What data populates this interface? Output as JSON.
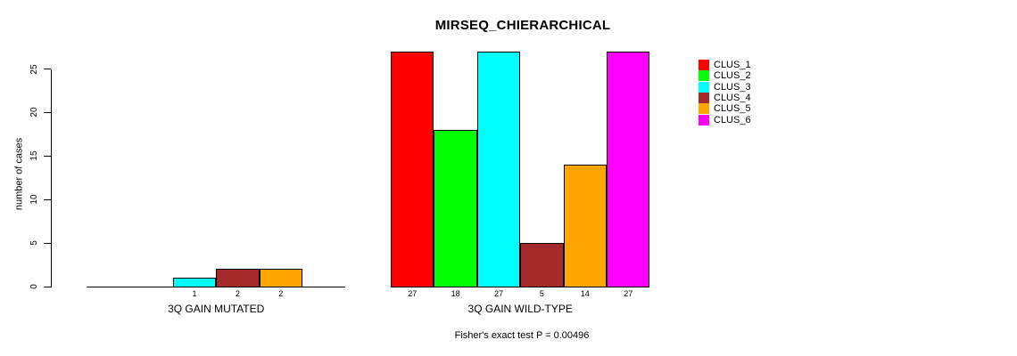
{
  "title": "MIRSEQ_CHIERARCHICAL",
  "footnote": "Fisher's exact test P = 0.00496",
  "chart_data": {
    "type": "bar",
    "title": "MIRSEQ_CHIERARCHICAL",
    "ylabel": "number of cases",
    "ylim": [
      0,
      27
    ],
    "yticks": [
      0,
      5,
      10,
      15,
      20,
      25
    ],
    "grid": false,
    "legend_position": "right",
    "legend": [
      {
        "name": "CLUS_1",
        "color": "#FF0000"
      },
      {
        "name": "CLUS_2",
        "color": "#00FF00"
      },
      {
        "name": "CLUS_3",
        "color": "#00FFFF"
      },
      {
        "name": "CLUS_4",
        "color": "#A52A2A"
      },
      {
        "name": "CLUS_5",
        "color": "#FFA500"
      },
      {
        "name": "CLUS_6",
        "color": "#FF00FF"
      }
    ],
    "groups": [
      {
        "label": "3Q GAIN MUTATED",
        "values": [
          0,
          0,
          1,
          2,
          2,
          0
        ],
        "bar_labels": [
          "",
          "",
          "1",
          "2",
          "2",
          ""
        ]
      },
      {
        "label": "3Q GAIN WILD-TYPE",
        "values": [
          27,
          18,
          27,
          5,
          14,
          27
        ],
        "bar_labels": [
          "27",
          "18",
          "27",
          "5",
          "14",
          "27"
        ]
      }
    ],
    "annotation": "Fisher's exact test P = 0.00496"
  }
}
